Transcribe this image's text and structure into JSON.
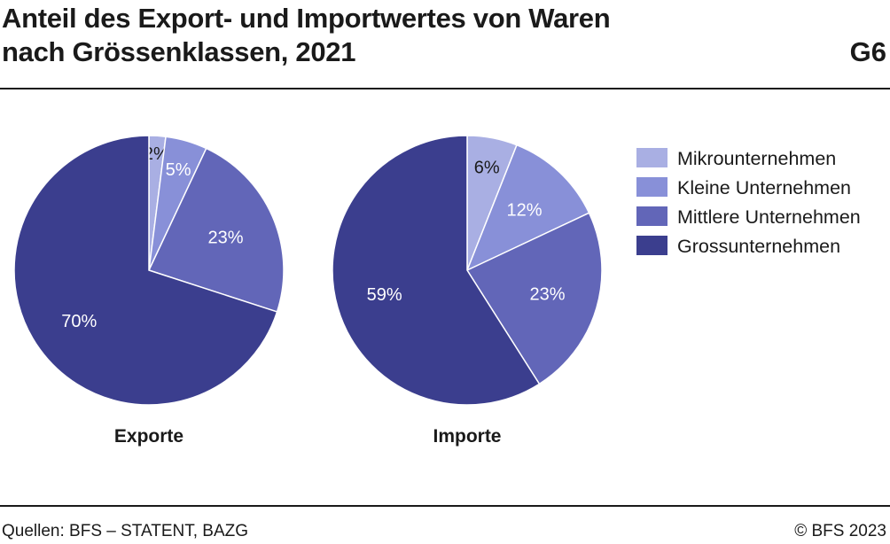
{
  "header": {
    "title_line1": "Anteil des Export- und Importwertes von Waren",
    "title_line2": "nach Grössenklassen, 2021",
    "code": "G6"
  },
  "footer": {
    "sources": "Quellen: BFS – STATENT, BAZG",
    "copyright": "© BFS 2023"
  },
  "chart_data": {
    "type": "pie",
    "categories": [
      "Mikrounternehmen",
      "Kleine Unternehmen",
      "Mittlere Unternehmen",
      "Grossunternehmen"
    ],
    "colors": [
      "#a9afe3",
      "#8890d8",
      "#6266b8",
      "#3b3e8e"
    ],
    "legend_position": "right",
    "charts": [
      {
        "name": "Exporte",
        "values": [
          2,
          5,
          23,
          70
        ],
        "labels": [
          "2%",
          "5%",
          "23%",
          "70%"
        ]
      },
      {
        "name": "Importe",
        "values": [
          6,
          12,
          23,
          59
        ],
        "labels": [
          "6%",
          "12%",
          "23%",
          "59%"
        ]
      }
    ]
  }
}
